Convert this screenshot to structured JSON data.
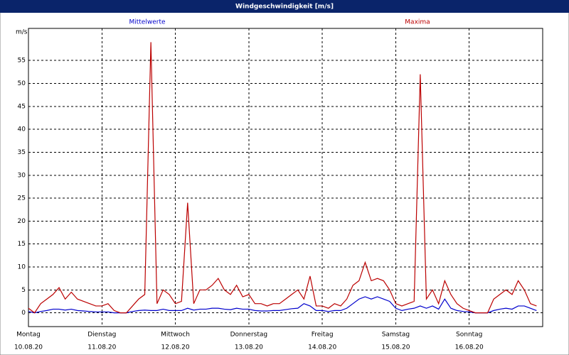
{
  "chart_data": {
    "type": "line",
    "title": "Windgeschwindigkeit [m/s]",
    "y_label": "m/s",
    "x": [
      0,
      2,
      4,
      6,
      8,
      10,
      12,
      14,
      16,
      18,
      20,
      22,
      24,
      26,
      28,
      30,
      32,
      34,
      36,
      38,
      40,
      42,
      44,
      46,
      48,
      50,
      52,
      54,
      56,
      58,
      60,
      62,
      64,
      66,
      68,
      70,
      72,
      74,
      76,
      78,
      80,
      82,
      84,
      86,
      88,
      90,
      92,
      94,
      96,
      98,
      100,
      102,
      104,
      106,
      108,
      110,
      112,
      114,
      116,
      118,
      120,
      122,
      124,
      126,
      128,
      130,
      132,
      134,
      136,
      138,
      140,
      142,
      144,
      146,
      148,
      150,
      152,
      154,
      156,
      158,
      160,
      162,
      164,
      166
    ],
    "series": [
      {
        "name": "Mittelwerte",
        "color": "#0000cc",
        "values": [
          0.3,
          0,
          0.3,
          0.5,
          0.8,
          0.8,
          0.6,
          0.8,
          0.5,
          0.4,
          0.3,
          0.2,
          0.2,
          0.2,
          0,
          0,
          0,
          0.3,
          0.5,
          0.6,
          0.5,
          0.5,
          0.8,
          0.5,
          0.5,
          0.5,
          1,
          0.6,
          0.8,
          0.8,
          1,
          1,
          0.8,
          0.7,
          1,
          0.8,
          0.8,
          0.5,
          0.4,
          0.4,
          0.5,
          0.5,
          0.7,
          0.9,
          1,
          2,
          1.5,
          0.5,
          0.5,
          0.3,
          0.5,
          0.5,
          1,
          2,
          3,
          3.5,
          3,
          3.5,
          3,
          2.5,
          1,
          0.5,
          0.8,
          1,
          1.5,
          1,
          1.5,
          0.8,
          3,
          1,
          0.5,
          0.3,
          0.2,
          0,
          0,
          0,
          0.5,
          0.8,
          1,
          0.8,
          1.5,
          1.5,
          1,
          0.5
        ]
      },
      {
        "name": "Maxima",
        "color": "#bb0000",
        "values": [
          1,
          0,
          2,
          3,
          4,
          5.5,
          3,
          4.5,
          3,
          2.5,
          2,
          1.5,
          1.5,
          2,
          0.5,
          0,
          0,
          1.5,
          3,
          4,
          59,
          2,
          5,
          4,
          2,
          2.5,
          24,
          2,
          5,
          5,
          6,
          7.5,
          5,
          4,
          6,
          3.5,
          4,
          2,
          2,
          1.5,
          2,
          2,
          3,
          4,
          5,
          3,
          8,
          1.5,
          1.5,
          1,
          2,
          1.5,
          3,
          6,
          7,
          11,
          7,
          7.5,
          7,
          5,
          2,
          1.5,
          2,
          2.5,
          52,
          3,
          5,
          2,
          7,
          4,
          2,
          1,
          0.5,
          0,
          0,
          0,
          3,
          4,
          5,
          4,
          7,
          5,
          2,
          1.5
        ]
      }
    ],
    "xlim": [
      0,
      168
    ],
    "xticks": [
      {
        "value": 0,
        "label": "Montag"
      },
      {
        "value": 24,
        "label": "Dienstag"
      },
      {
        "value": 48,
        "label": "Mittwoch"
      },
      {
        "value": 72,
        "label": "Donnerstag"
      },
      {
        "value": 96,
        "label": "Freitag"
      },
      {
        "value": 120,
        "label": "Samstag"
      },
      {
        "value": 144,
        "label": "Sonntag"
      }
    ],
    "xtick_dates": [
      "10.08.20",
      "11.08.20",
      "12.08.20",
      "13.08.20",
      "14.08.20",
      "15.08.20",
      "16.08.20"
    ],
    "ylim": [
      -3,
      62
    ],
    "yticks": [
      0,
      5,
      10,
      15,
      20,
      25,
      30,
      35,
      40,
      45,
      50,
      55
    ],
    "grid": true
  }
}
